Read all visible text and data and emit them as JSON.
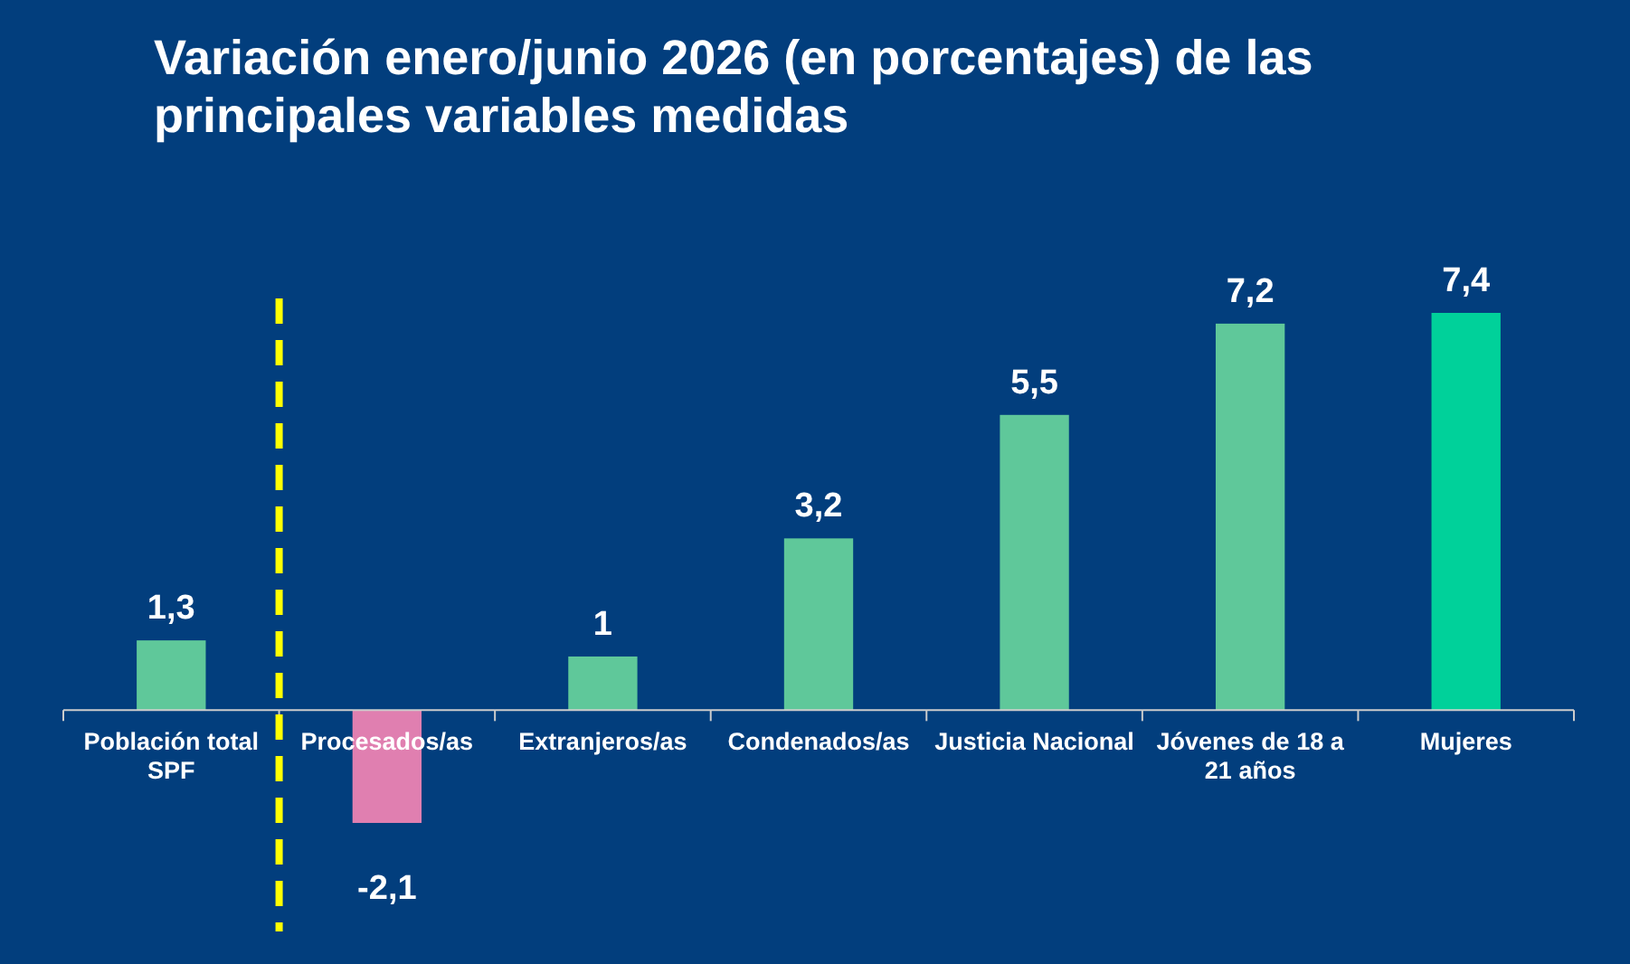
{
  "chart_data": {
    "type": "bar",
    "title": "Variación enero/junio 2026 (en porcentajes) de las principales variables medidas",
    "categories": [
      "Población total SPF",
      "Procesados/as",
      "Extranjeros/as",
      "Condenados/as",
      "Justicia Nacional",
      "Jóvenes de 18 a 21 años",
      "Mujeres"
    ],
    "values": [
      1.3,
      -2.1,
      1,
      3.2,
      5.5,
      7.2,
      7.4
    ],
    "colors": [
      "#5fc89a",
      "#e07fb0",
      "#5fc89a",
      "#5fc89a",
      "#5fc89a",
      "#5fc89a",
      "#00d19a"
    ],
    "value_labels": [
      "1,3",
      "-2,1",
      "1",
      "3,2",
      "5,5",
      "7,2",
      "7,4"
    ]
  }
}
